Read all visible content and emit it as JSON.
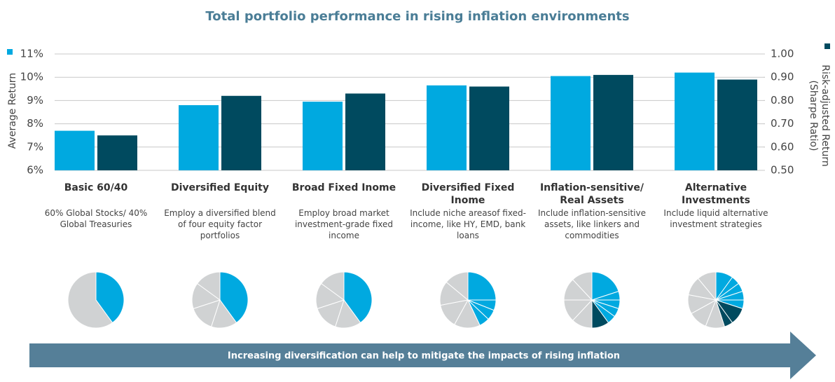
{
  "chart_data": {
    "type": "bar",
    "title": "Total portfolio performance in rising inflation environments",
    "categories": [
      "Basic 60/40",
      "Diversified Equity",
      "Broad Fixed Inome",
      "Diversified Fixed Inome",
      "Inflation-sensitive/ Real Assets",
      "Alternative Investments"
    ],
    "descriptions": [
      "60% Global Stocks/ 40% Global Treasuries",
      "Employ a diversified blend of four equity factor portfolios",
      "Employ broad market investment-grade fixed income",
      "Include niche areasof fixed-income, like HY, EMD, bank loans",
      "Include inflation-sensitive assets, like linkers and commodities",
      "Include liquid alternative investment strategies"
    ],
    "series": [
      {
        "name": "Average Return",
        "color": "#00a9e0",
        "values": [
          7.7,
          8.8,
          8.95,
          9.65,
          10.05,
          10.2
        ]
      },
      {
        "name": "Risk-adjusted Return (Sharpe Ratio)",
        "color": "#004a5f",
        "axis": "y2",
        "values": [
          0.65,
          0.82,
          0.83,
          0.86,
          0.91,
          0.89
        ]
      }
    ],
    "ylim": [
      6,
      11
    ],
    "yticks": [
      {
        "value": 6,
        "label": "6%"
      },
      {
        "value": 7,
        "label": "7%"
      },
      {
        "value": 8,
        "label": "8%"
      },
      {
        "value": 9,
        "label": "9%"
      },
      {
        "value": 10,
        "label": "10%"
      },
      {
        "value": 11,
        "label": "11%"
      }
    ],
    "y2lim": [
      0.5,
      1.0
    ],
    "y2ticks": [
      {
        "value": 0.5,
        "label": "0.50"
      },
      {
        "value": 0.6,
        "label": "0.60"
      },
      {
        "value": 0.7,
        "label": "0.70"
      },
      {
        "value": 0.8,
        "label": "0.80"
      },
      {
        "value": 0.9,
        "label": "0.90"
      },
      {
        "value": 1.0,
        "label": "1.00"
      }
    ],
    "grid": true,
    "pies": [
      {
        "values": [
          40,
          60
        ],
        "colors": [
          "#00a9e0",
          "#d0d2d3"
        ]
      },
      {
        "values": [
          40,
          15,
          15,
          15,
          15
        ],
        "colors": [
          "#00a9e0",
          "#d0d2d3",
          "#d0d2d3",
          "#d0d2d3",
          "#d0d2d3"
        ]
      },
      {
        "values": [
          40,
          15,
          15,
          15,
          15
        ],
        "colors": [
          "#00a9e0",
          "#d0d2d3",
          "#d0d2d3",
          "#d0d2d3",
          "#d0d2d3"
        ]
      },
      {
        "values": [
          25,
          6,
          6,
          6,
          15,
          14,
          14,
          14
        ],
        "colors": [
          "#00a9e0",
          "#00a9e0",
          "#00a9e0",
          "#00a9e0",
          "#d0d2d3",
          "#d0d2d3",
          "#d0d2d3",
          "#d0d2d3"
        ]
      },
      {
        "values": [
          20,
          5,
          5,
          5,
          5,
          10,
          12,
          13,
          13,
          12
        ],
        "colors": [
          "#00a9e0",
          "#00a9e0",
          "#00a9e0",
          "#00a9e0",
          "#00a9e0",
          "#004a5f",
          "#d0d2d3",
          "#d0d2d3",
          "#d0d2d3",
          "#d0d2d3"
        ]
      },
      {
        "values": [
          10,
          5,
          5,
          5,
          5,
          10,
          5,
          11,
          11,
          11,
          11,
          11
        ],
        "colors": [
          "#00a9e0",
          "#00a9e0",
          "#00a9e0",
          "#00a9e0",
          "#00a9e0",
          "#004a5f",
          "#004a5f",
          "#d0d2d3",
          "#d0d2d3",
          "#d0d2d3",
          "#d0d2d3",
          "#d0d2d3"
        ]
      }
    ],
    "banner": "Increasing diversification can help to mitigate the impacts of rising inflation"
  }
}
